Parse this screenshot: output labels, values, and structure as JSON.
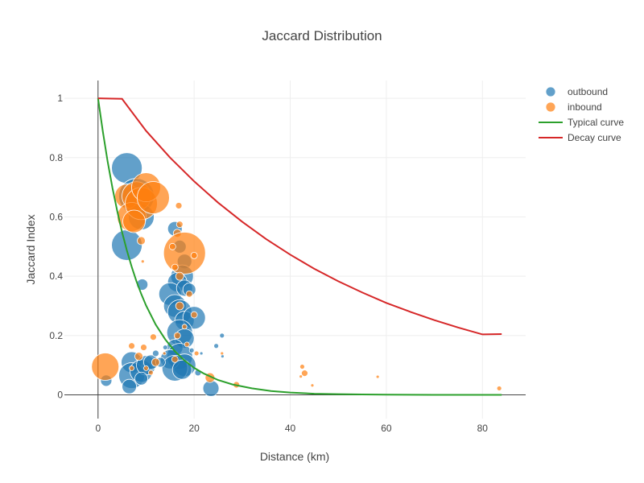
{
  "chart_data": {
    "type": "scatter",
    "title": "Jaccard Distribution",
    "xlabel": "Distance (km)",
    "ylabel": "Jaccard Index",
    "xlim": [
      -7,
      89
    ],
    "ylim": [
      -0.08,
      1.06
    ],
    "x_ticks": [
      0,
      20,
      40,
      60,
      80
    ],
    "y_ticks": [
      0,
      0.2,
      0.4,
      0.6,
      0.8,
      1
    ],
    "grid": true,
    "legend_position": "top-right",
    "series": [
      {
        "name": "outbound",
        "kind": "bubble",
        "color": "#1f77b4",
        "points": [
          {
            "x": 6,
            "y": 0.765,
            "s": 19
          },
          {
            "x": 6,
            "y": 0.505,
            "s": 19
          },
          {
            "x": 8,
            "y": 0.67,
            "s": 22
          },
          {
            "x": 9,
            "y": 0.6,
            "s": 16
          },
          {
            "x": 9.2,
            "y": 0.372,
            "s": 7
          },
          {
            "x": 16,
            "y": 0.56,
            "s": 9
          },
          {
            "x": 17,
            "y": 0.5,
            "s": 8
          },
          {
            "x": 18,
            "y": 0.45,
            "s": 9
          },
          {
            "x": 17.5,
            "y": 0.4,
            "s": 14
          },
          {
            "x": 16.5,
            "y": 0.38,
            "s": 12
          },
          {
            "x": 15,
            "y": 0.34,
            "s": 14
          },
          {
            "x": 18,
            "y": 0.36,
            "s": 10
          },
          {
            "x": 19,
            "y": 0.355,
            "s": 8
          },
          {
            "x": 16,
            "y": 0.3,
            "s": 14
          },
          {
            "x": 17,
            "y": 0.28,
            "s": 15
          },
          {
            "x": 18,
            "y": 0.25,
            "s": 12
          },
          {
            "x": 20,
            "y": 0.26,
            "s": 14
          },
          {
            "x": 17,
            "y": 0.21,
            "s": 16
          },
          {
            "x": 18,
            "y": 0.19,
            "s": 12
          },
          {
            "x": 16,
            "y": 0.16,
            "s": 10
          },
          {
            "x": 17,
            "y": 0.13,
            "s": 16
          },
          {
            "x": 18,
            "y": 0.1,
            "s": 14
          },
          {
            "x": 15,
            "y": 0.12,
            "s": 12
          },
          {
            "x": 16,
            "y": 0.09,
            "s": 16
          },
          {
            "x": 17.5,
            "y": 0.085,
            "s": 12
          },
          {
            "x": 7,
            "y": 0.11,
            "s": 13
          },
          {
            "x": 7,
            "y": 0.065,
            "s": 16
          },
          {
            "x": 9,
            "y": 0.08,
            "s": 14
          },
          {
            "x": 10,
            "y": 0.1,
            "s": 12
          },
          {
            "x": 11,
            "y": 0.11,
            "s": 9
          },
          {
            "x": 6.5,
            "y": 0.028,
            "s": 9
          },
          {
            "x": 9,
            "y": 0.055,
            "s": 8
          },
          {
            "x": 13,
            "y": 0.11,
            "s": 6
          },
          {
            "x": 12,
            "y": 0.14,
            "s": 4
          },
          {
            "x": 14,
            "y": 0.16,
            "s": 3
          },
          {
            "x": 1.7,
            "y": 0.048,
            "s": 7
          },
          {
            "x": 23.5,
            "y": 0.022,
            "s": 10
          },
          {
            "x": 24.6,
            "y": 0.165,
            "s": 3
          },
          {
            "x": 25.8,
            "y": 0.2,
            "s": 3
          },
          {
            "x": 25.9,
            "y": 0.13,
            "s": 2
          },
          {
            "x": 20.8,
            "y": 0.075,
            "s": 4
          },
          {
            "x": 21.5,
            "y": 0.14,
            "s": 2
          },
          {
            "x": 19.5,
            "y": 0.15,
            "s": 3
          }
        ]
      },
      {
        "name": "inbound",
        "kind": "bubble",
        "color": "#ff7f0e",
        "points": [
          {
            "x": 6,
            "y": 0.67,
            "s": 15
          },
          {
            "x": 8,
            "y": 0.67,
            "s": 18
          },
          {
            "x": 7,
            "y": 0.6,
            "s": 18
          },
          {
            "x": 9,
            "y": 0.645,
            "s": 20
          },
          {
            "x": 10,
            "y": 0.7,
            "s": 18
          },
          {
            "x": 11.5,
            "y": 0.665,
            "s": 20
          },
          {
            "x": 7.5,
            "y": 0.585,
            "s": 14
          },
          {
            "x": 9,
            "y": 0.52,
            "s": 5
          },
          {
            "x": 9.3,
            "y": 0.45,
            "s": 2
          },
          {
            "x": 16.8,
            "y": 0.638,
            "s": 4
          },
          {
            "x": 17,
            "y": 0.575,
            "s": 4
          },
          {
            "x": 16.5,
            "y": 0.545,
            "s": 5
          },
          {
            "x": 18,
            "y": 0.478,
            "s": 26
          },
          {
            "x": 15.5,
            "y": 0.5,
            "s": 4
          },
          {
            "x": 16,
            "y": 0.43,
            "s": 4
          },
          {
            "x": 20,
            "y": 0.47,
            "s": 4
          },
          {
            "x": 17,
            "y": 0.4,
            "s": 5
          },
          {
            "x": 19,
            "y": 0.34,
            "s": 4
          },
          {
            "x": 17,
            "y": 0.3,
            "s": 5
          },
          {
            "x": 20,
            "y": 0.27,
            "s": 4
          },
          {
            "x": 18,
            "y": 0.23,
            "s": 3
          },
          {
            "x": 16.5,
            "y": 0.2,
            "s": 4
          },
          {
            "x": 18.5,
            "y": 0.17,
            "s": 3
          },
          {
            "x": 16,
            "y": 0.12,
            "s": 4
          },
          {
            "x": 20.5,
            "y": 0.14,
            "s": 3
          },
          {
            "x": 11.5,
            "y": 0.195,
            "s": 4
          },
          {
            "x": 9.5,
            "y": 0.16,
            "s": 4
          },
          {
            "x": 7,
            "y": 0.165,
            "s": 4
          },
          {
            "x": 8.5,
            "y": 0.13,
            "s": 5
          },
          {
            "x": 10,
            "y": 0.09,
            "s": 3
          },
          {
            "x": 12,
            "y": 0.11,
            "s": 5
          },
          {
            "x": 7,
            "y": 0.09,
            "s": 3
          },
          {
            "x": 11,
            "y": 0.075,
            "s": 3
          },
          {
            "x": 13.8,
            "y": 0.14,
            "s": 2
          },
          {
            "x": 1.5,
            "y": 0.095,
            "s": 17
          },
          {
            "x": 23.3,
            "y": 0.058,
            "s": 6
          },
          {
            "x": 28.8,
            "y": 0.034,
            "s": 4
          },
          {
            "x": 25.8,
            "y": 0.14,
            "s": 2
          },
          {
            "x": 42.5,
            "y": 0.095,
            "s": 3
          },
          {
            "x": 43,
            "y": 0.073,
            "s": 4
          },
          {
            "x": 42.2,
            "y": 0.062,
            "s": 2
          },
          {
            "x": 44.6,
            "y": 0.032,
            "s": 2
          },
          {
            "x": 58.2,
            "y": 0.061,
            "s": 2
          },
          {
            "x": 83.5,
            "y": 0.022,
            "s": 3
          }
        ]
      },
      {
        "name": "Typical curve",
        "kind": "line",
        "color": "#2ca02c",
        "x": [
          0,
          1,
          2,
          3,
          4,
          5,
          6,
          7,
          8,
          9,
          10,
          12,
          14,
          16,
          18,
          20,
          22,
          25,
          28,
          32,
          36,
          40,
          45,
          50,
          55,
          60,
          70,
          80,
          84
        ],
        "y": [
          1,
          0.887,
          0.787,
          0.698,
          0.619,
          0.549,
          0.487,
          0.432,
          0.383,
          0.34,
          0.301,
          0.237,
          0.187,
          0.147,
          0.116,
          0.091,
          0.072,
          0.05,
          0.035,
          0.022,
          0.013,
          0.008,
          0.004,
          0.0025,
          0.0013,
          0.0007,
          0.0002,
          0.0001,
          0
        ]
      },
      {
        "name": "Decay curve",
        "kind": "line",
        "color": "#d62728",
        "x": [
          0,
          5,
          10,
          15,
          20,
          25,
          30,
          35,
          40,
          45,
          50,
          55,
          60,
          65,
          70,
          75,
          80,
          84
        ],
        "y": [
          1,
          0.998,
          0.89,
          0.8,
          0.72,
          0.648,
          0.584,
          0.525,
          0.473,
          0.425,
          0.383,
          0.345,
          0.31,
          0.28,
          0.252,
          0.227,
          0.204,
          0.205
        ]
      }
    ]
  }
}
